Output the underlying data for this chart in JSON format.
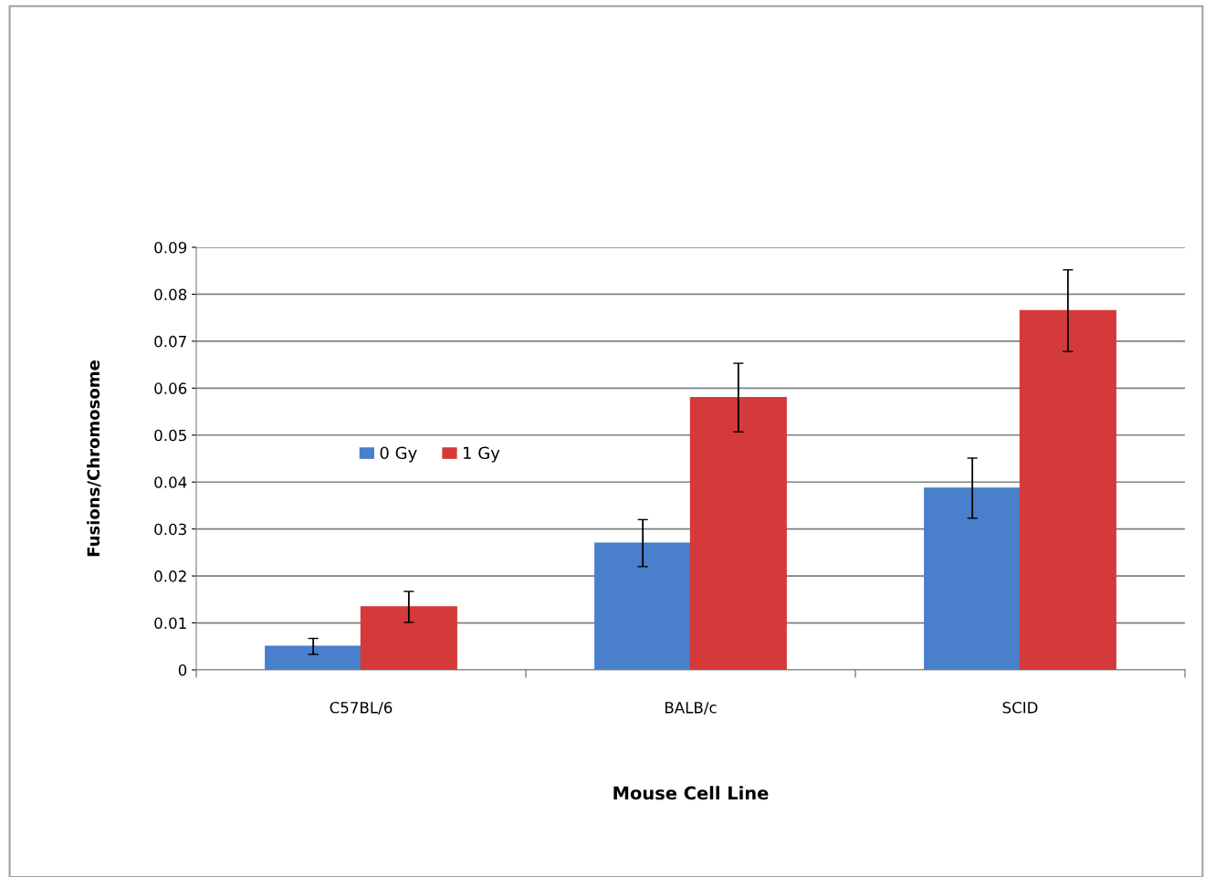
{
  "chart_data": {
    "type": "bar",
    "xlabel": "Mouse Cell Line",
    "ylabel": "Fusions/Chromosome",
    "categories": [
      "C57BL/6",
      "BALB/c",
      "SCID"
    ],
    "series": [
      {
        "name": "0 Gy",
        "color": "#4a7fcb",
        "values": [
          0.005,
          0.027,
          0.0387
        ],
        "errors": [
          0.0017,
          0.005,
          0.0064
        ]
      },
      {
        "name": "1 Gy",
        "color": "#d43a3a",
        "values": [
          0.0134,
          0.058,
          0.0765
        ],
        "errors": [
          0.0033,
          0.0073,
          0.0087
        ]
      }
    ],
    "ylim": [
      0,
      0.09
    ],
    "yticks": [
      {
        "value": 0,
        "label": "0"
      },
      0.01,
      0.02,
      0.03,
      0.04,
      0.05,
      0.06,
      0.07,
      0.08,
      0.09
    ],
    "grid": "y",
    "legend": "left"
  }
}
